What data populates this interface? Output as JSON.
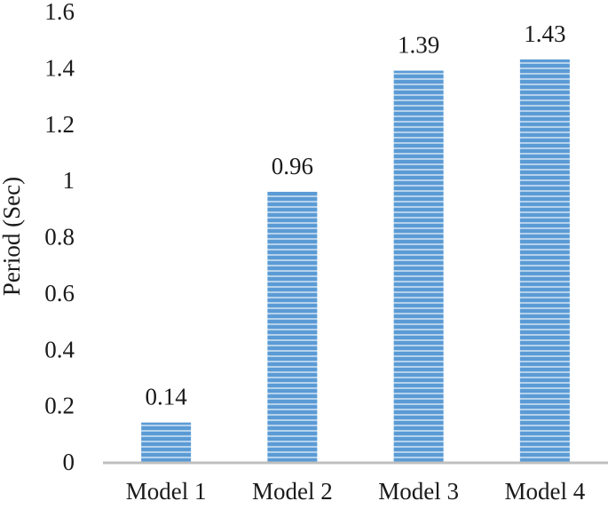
{
  "chart_data": {
    "type": "bar",
    "title": "",
    "xlabel": "",
    "ylabel": "Period (Sec)",
    "categories": [
      "Model 1",
      "Model 2",
      "Model 3",
      "Model 4"
    ],
    "values": [
      0.14,
      0.96,
      1.39,
      1.43
    ],
    "data_labels": [
      "0.14",
      "0.96",
      "1.39",
      "1.43"
    ],
    "ylim": [
      0,
      1.6
    ],
    "yticks": [
      "0",
      "0.2",
      "0.4",
      "0.6",
      "0.8",
      "1",
      "1.2",
      "1.4",
      "1.6"
    ],
    "grid": false,
    "legend": "none",
    "colors": {
      "bar": "#5b9bd5",
      "bar_stripe": "#ffffff",
      "axis": "#bfbfbf",
      "text": "#1a1a1a"
    }
  }
}
